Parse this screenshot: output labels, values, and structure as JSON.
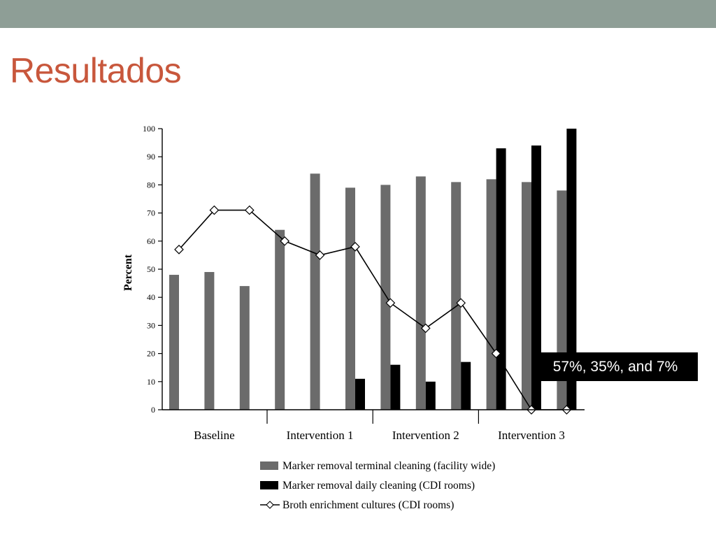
{
  "slide": {
    "title": "Resultados",
    "band_color": "#8e9e96",
    "title_color": "#c8573c"
  },
  "callout": {
    "text": "57%, 35%, and 7%"
  },
  "chart_data": {
    "type": "bar",
    "ylabel": "Percent",
    "ylim": [
      0,
      100
    ],
    "yticks": [
      0,
      10,
      20,
      30,
      40,
      50,
      60,
      70,
      80,
      90,
      100
    ],
    "grid": false,
    "legend_position": "bottom",
    "groups": [
      {
        "label": "Baseline",
        "count": 3
      },
      {
        "label": "Intervention 1",
        "count": 3
      },
      {
        "label": "Intervention 2",
        "count": 3
      },
      {
        "label": "Intervention 3",
        "count": 3
      }
    ],
    "series": [
      {
        "name": "Marker removal terminal cleaning (facility wide)",
        "kind": "bar",
        "color": "#6b6b6b",
        "values": [
          48,
          49,
          44,
          64,
          84,
          79,
          80,
          83,
          81,
          82,
          81,
          78
        ]
      },
      {
        "name": "Marker removal daily cleaning (CDI rooms)",
        "kind": "bar",
        "color": "#000000",
        "values": [
          null,
          null,
          null,
          null,
          null,
          11,
          16,
          10,
          17,
          93,
          94,
          100
        ]
      },
      {
        "name": "Broth enrichment cultures (CDI rooms)",
        "kind": "line",
        "marker": "diamond",
        "color": "#000000",
        "values": [
          57,
          71,
          71,
          60,
          55,
          58,
          38,
          29,
          38,
          20,
          0,
          0
        ]
      }
    ]
  }
}
